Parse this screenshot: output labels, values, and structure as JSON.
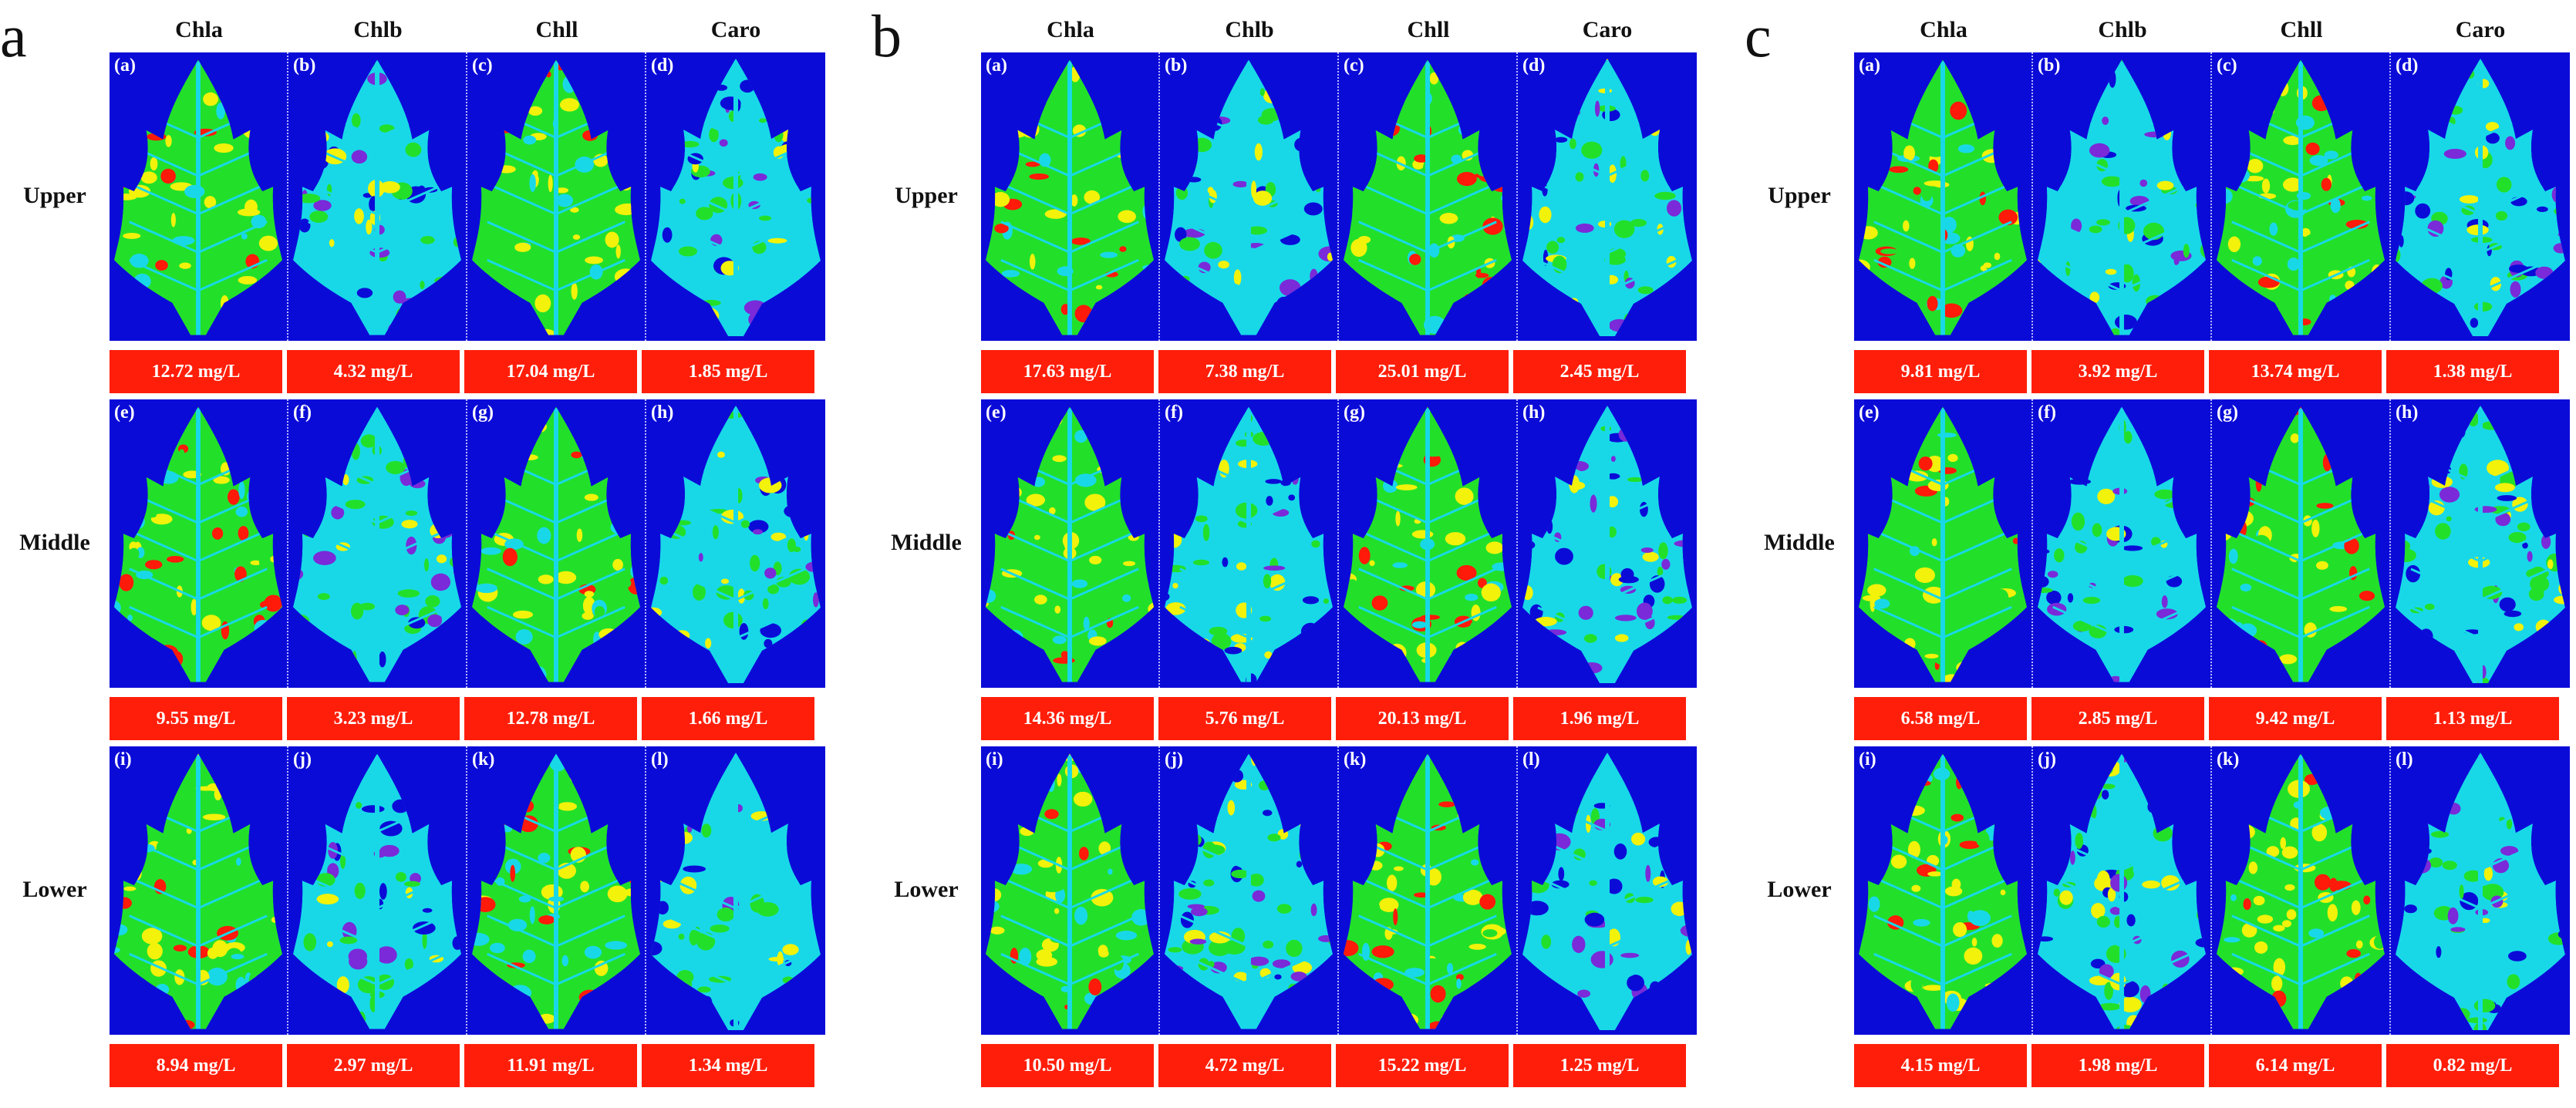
{
  "columns": [
    "Chla",
    "Chlb",
    "Chll",
    "Caro"
  ],
  "rows": [
    "Upper",
    "Middle",
    "Lower"
  ],
  "sub_labels": [
    [
      "(a)",
      "(b)",
      "(c)",
      "(d)"
    ],
    [
      "(e)",
      "(f)",
      "(g)",
      "(h)"
    ],
    [
      "(i)",
      "(j)",
      "(k)",
      "(l)"
    ]
  ],
  "panels": [
    {
      "letter": "a",
      "values": [
        [
          "12.72 mg/L",
          "4.32 mg/L",
          "17.04 mg/L",
          "1.85 mg/L"
        ],
        [
          "9.55 mg/L",
          "3.23 mg/L",
          "12.78 mg/L",
          "1.66 mg/L"
        ],
        [
          "8.94 mg/L",
          "2.97 mg/L",
          "11.91 mg/L",
          "1.34 mg/L"
        ]
      ]
    },
    {
      "letter": "b",
      "values": [
        [
          "17.63 mg/L",
          "7.38 mg/L",
          "25.01 mg/L",
          "2.45 mg/L"
        ],
        [
          "14.36 mg/L",
          "5.76 mg/L",
          "20.13 mg/L",
          "1.96 mg/L"
        ],
        [
          "10.50 mg/L",
          "4.72 mg/L",
          "15.22 mg/L",
          "1.25 mg/L"
        ]
      ]
    },
    {
      "letter": "c",
      "values": [
        [
          "9.81 mg/L",
          "3.92 mg/L",
          "13.74 mg/L",
          "1.38 mg/L"
        ],
        [
          "6.58 mg/L",
          "2.85 mg/L",
          "9.42 mg/L",
          "1.13 mg/L"
        ],
        [
          "4.15 mg/L",
          "1.98 mg/L",
          "6.14 mg/L",
          "0.82 mg/L"
        ]
      ]
    }
  ],
  "colors": {
    "background": "#0b0bd8",
    "value_box": "#ff1e0a",
    "leaf_green": "#22e02a",
    "leaf_yellow": "#f2f20a",
    "leaf_red": "#ff1a0a",
    "leaf_cyan": "#18d8e8",
    "leaf_purple": "#7a2ad8"
  }
}
